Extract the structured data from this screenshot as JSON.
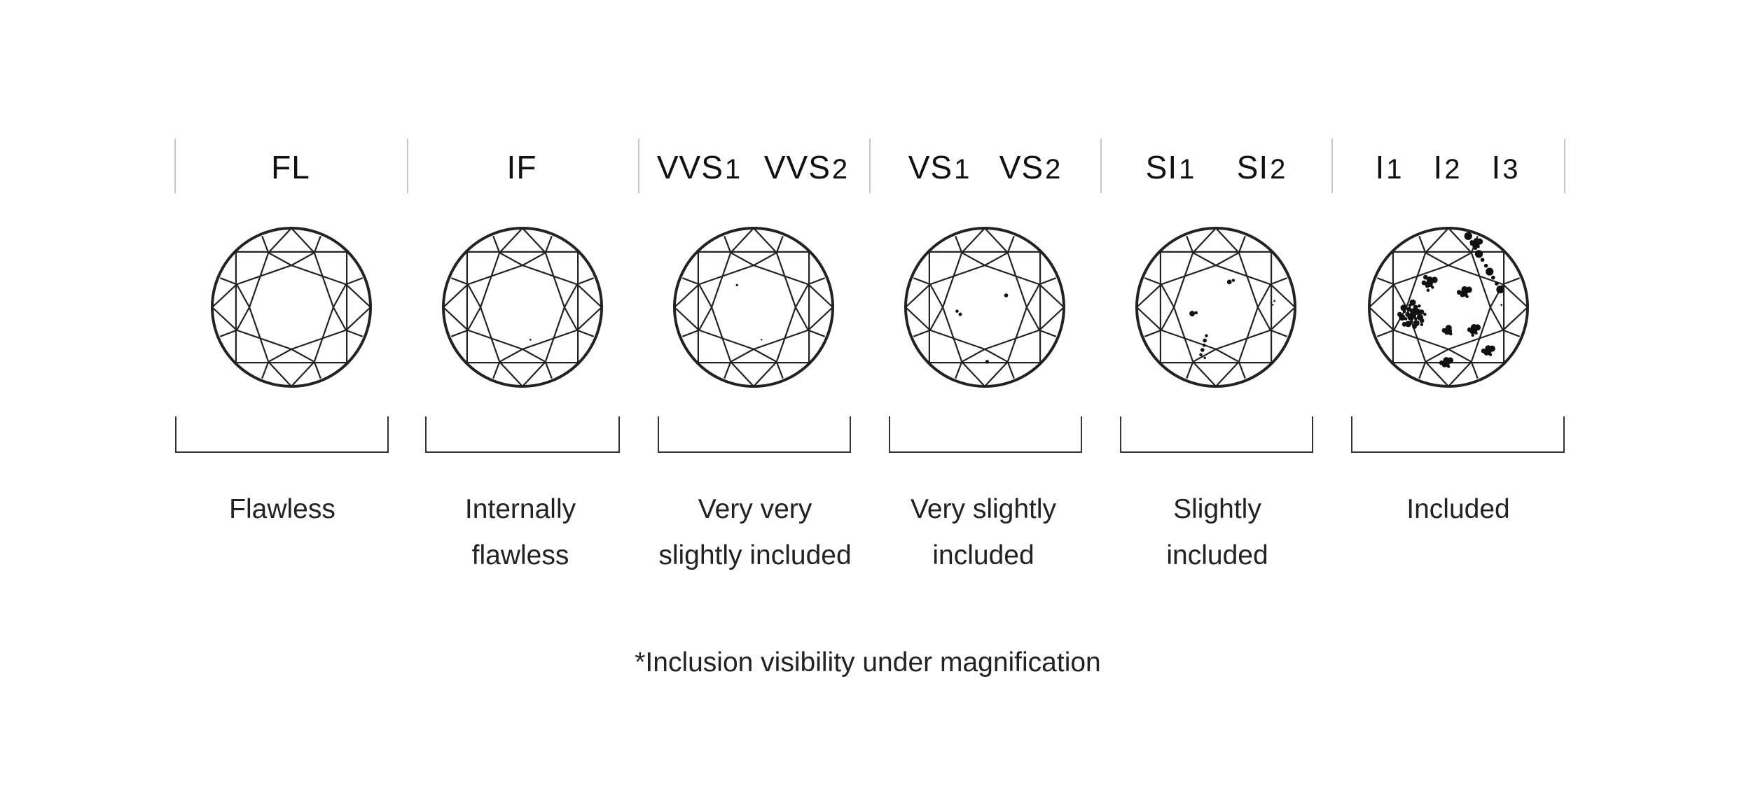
{
  "columns": [
    {
      "grades": [
        {
          "name": "FL",
          "sub": ""
        }
      ],
      "description": [
        "Flawless"
      ]
    },
    {
      "grades": [
        {
          "name": "IF",
          "sub": ""
        }
      ],
      "description": [
        "Internally",
        "flawless"
      ]
    },
    {
      "grades": [
        {
          "name": "VVS",
          "sub": "1"
        },
        {
          "name": "VVS",
          "sub": "2"
        }
      ],
      "description": [
        "Very very",
        "slightly included"
      ]
    },
    {
      "grades": [
        {
          "name": "VS",
          "sub": "1"
        },
        {
          "name": "VS",
          "sub": "2"
        }
      ],
      "description": [
        "Very slightly",
        "included"
      ]
    },
    {
      "grades": [
        {
          "name": "SI",
          "sub": "1"
        },
        {
          "name": "SI",
          "sub": "2"
        }
      ],
      "description": [
        "Slightly",
        "included"
      ]
    },
    {
      "grades": [
        {
          "name": "I",
          "sub": "1"
        },
        {
          "name": "I",
          "sub": "2"
        },
        {
          "name": "I",
          "sub": "3"
        }
      ],
      "description": [
        "Included"
      ]
    }
  ],
  "footnote": "*Inclusion visibility under magnification",
  "colors": {
    "line": "#222222",
    "divider": "#c8c8c8",
    "background": "#ffffff"
  }
}
